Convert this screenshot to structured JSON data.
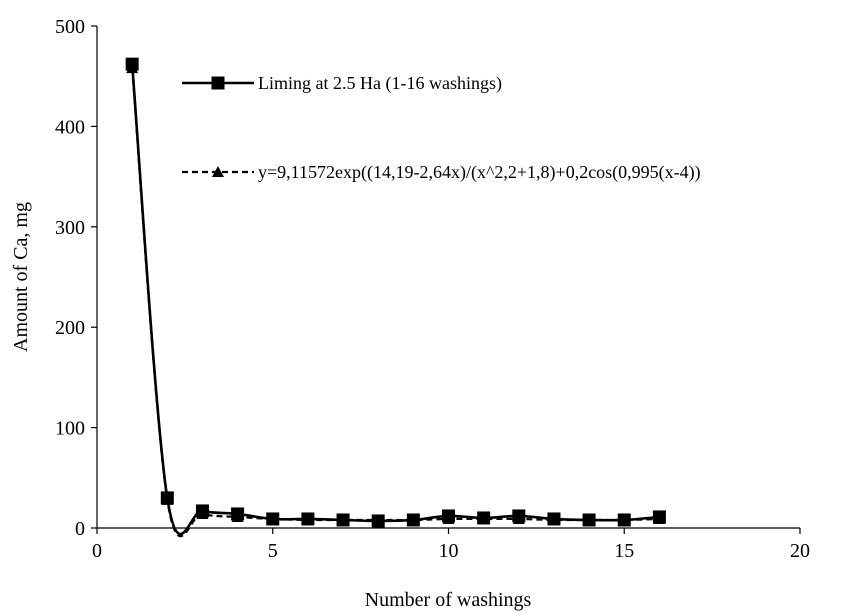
{
  "chart_data": {
    "type": "line",
    "xlabel": "Number of washings",
    "ylabel": "Amount of Ca, mg",
    "xlim": [
      0,
      20
    ],
    "ylim": [
      0,
      500
    ],
    "x_ticks": [
      "0",
      "5",
      "10",
      "15",
      "20"
    ],
    "y_ticks": [
      "0",
      "100",
      "200",
      "300",
      "400",
      "500"
    ],
    "grid": false,
    "legend_position": "top-right",
    "series": [
      {
        "name": "Liming at 2.5 Ha (1-16 washings)",
        "marker": "square",
        "line_style": "solid",
        "color": "#000000",
        "x": [
          1,
          2,
          3,
          4,
          5,
          6,
          7,
          8,
          9,
          10,
          11,
          12,
          13,
          14,
          15,
          16
        ],
        "y": [
          462,
          30,
          17,
          14,
          9,
          9,
          8,
          7,
          8,
          12,
          10,
          12,
          9,
          8,
          8,
          11
        ]
      },
      {
        "name": "y=9,11572exp((14,19-2,64x)/(x^2,2+1,8)+0,2cos(0,995(x-4))",
        "marker": "triangle",
        "line_style": "dashed",
        "color": "#000000",
        "x": [
          1,
          2,
          3,
          4,
          5,
          6,
          7,
          8,
          9,
          10,
          11,
          12,
          13,
          14,
          15,
          16
        ],
        "y": [
          458,
          28,
          14,
          11,
          9,
          8,
          8,
          8,
          8,
          9,
          9,
          9,
          8,
          8,
          8,
          9
        ]
      }
    ]
  }
}
